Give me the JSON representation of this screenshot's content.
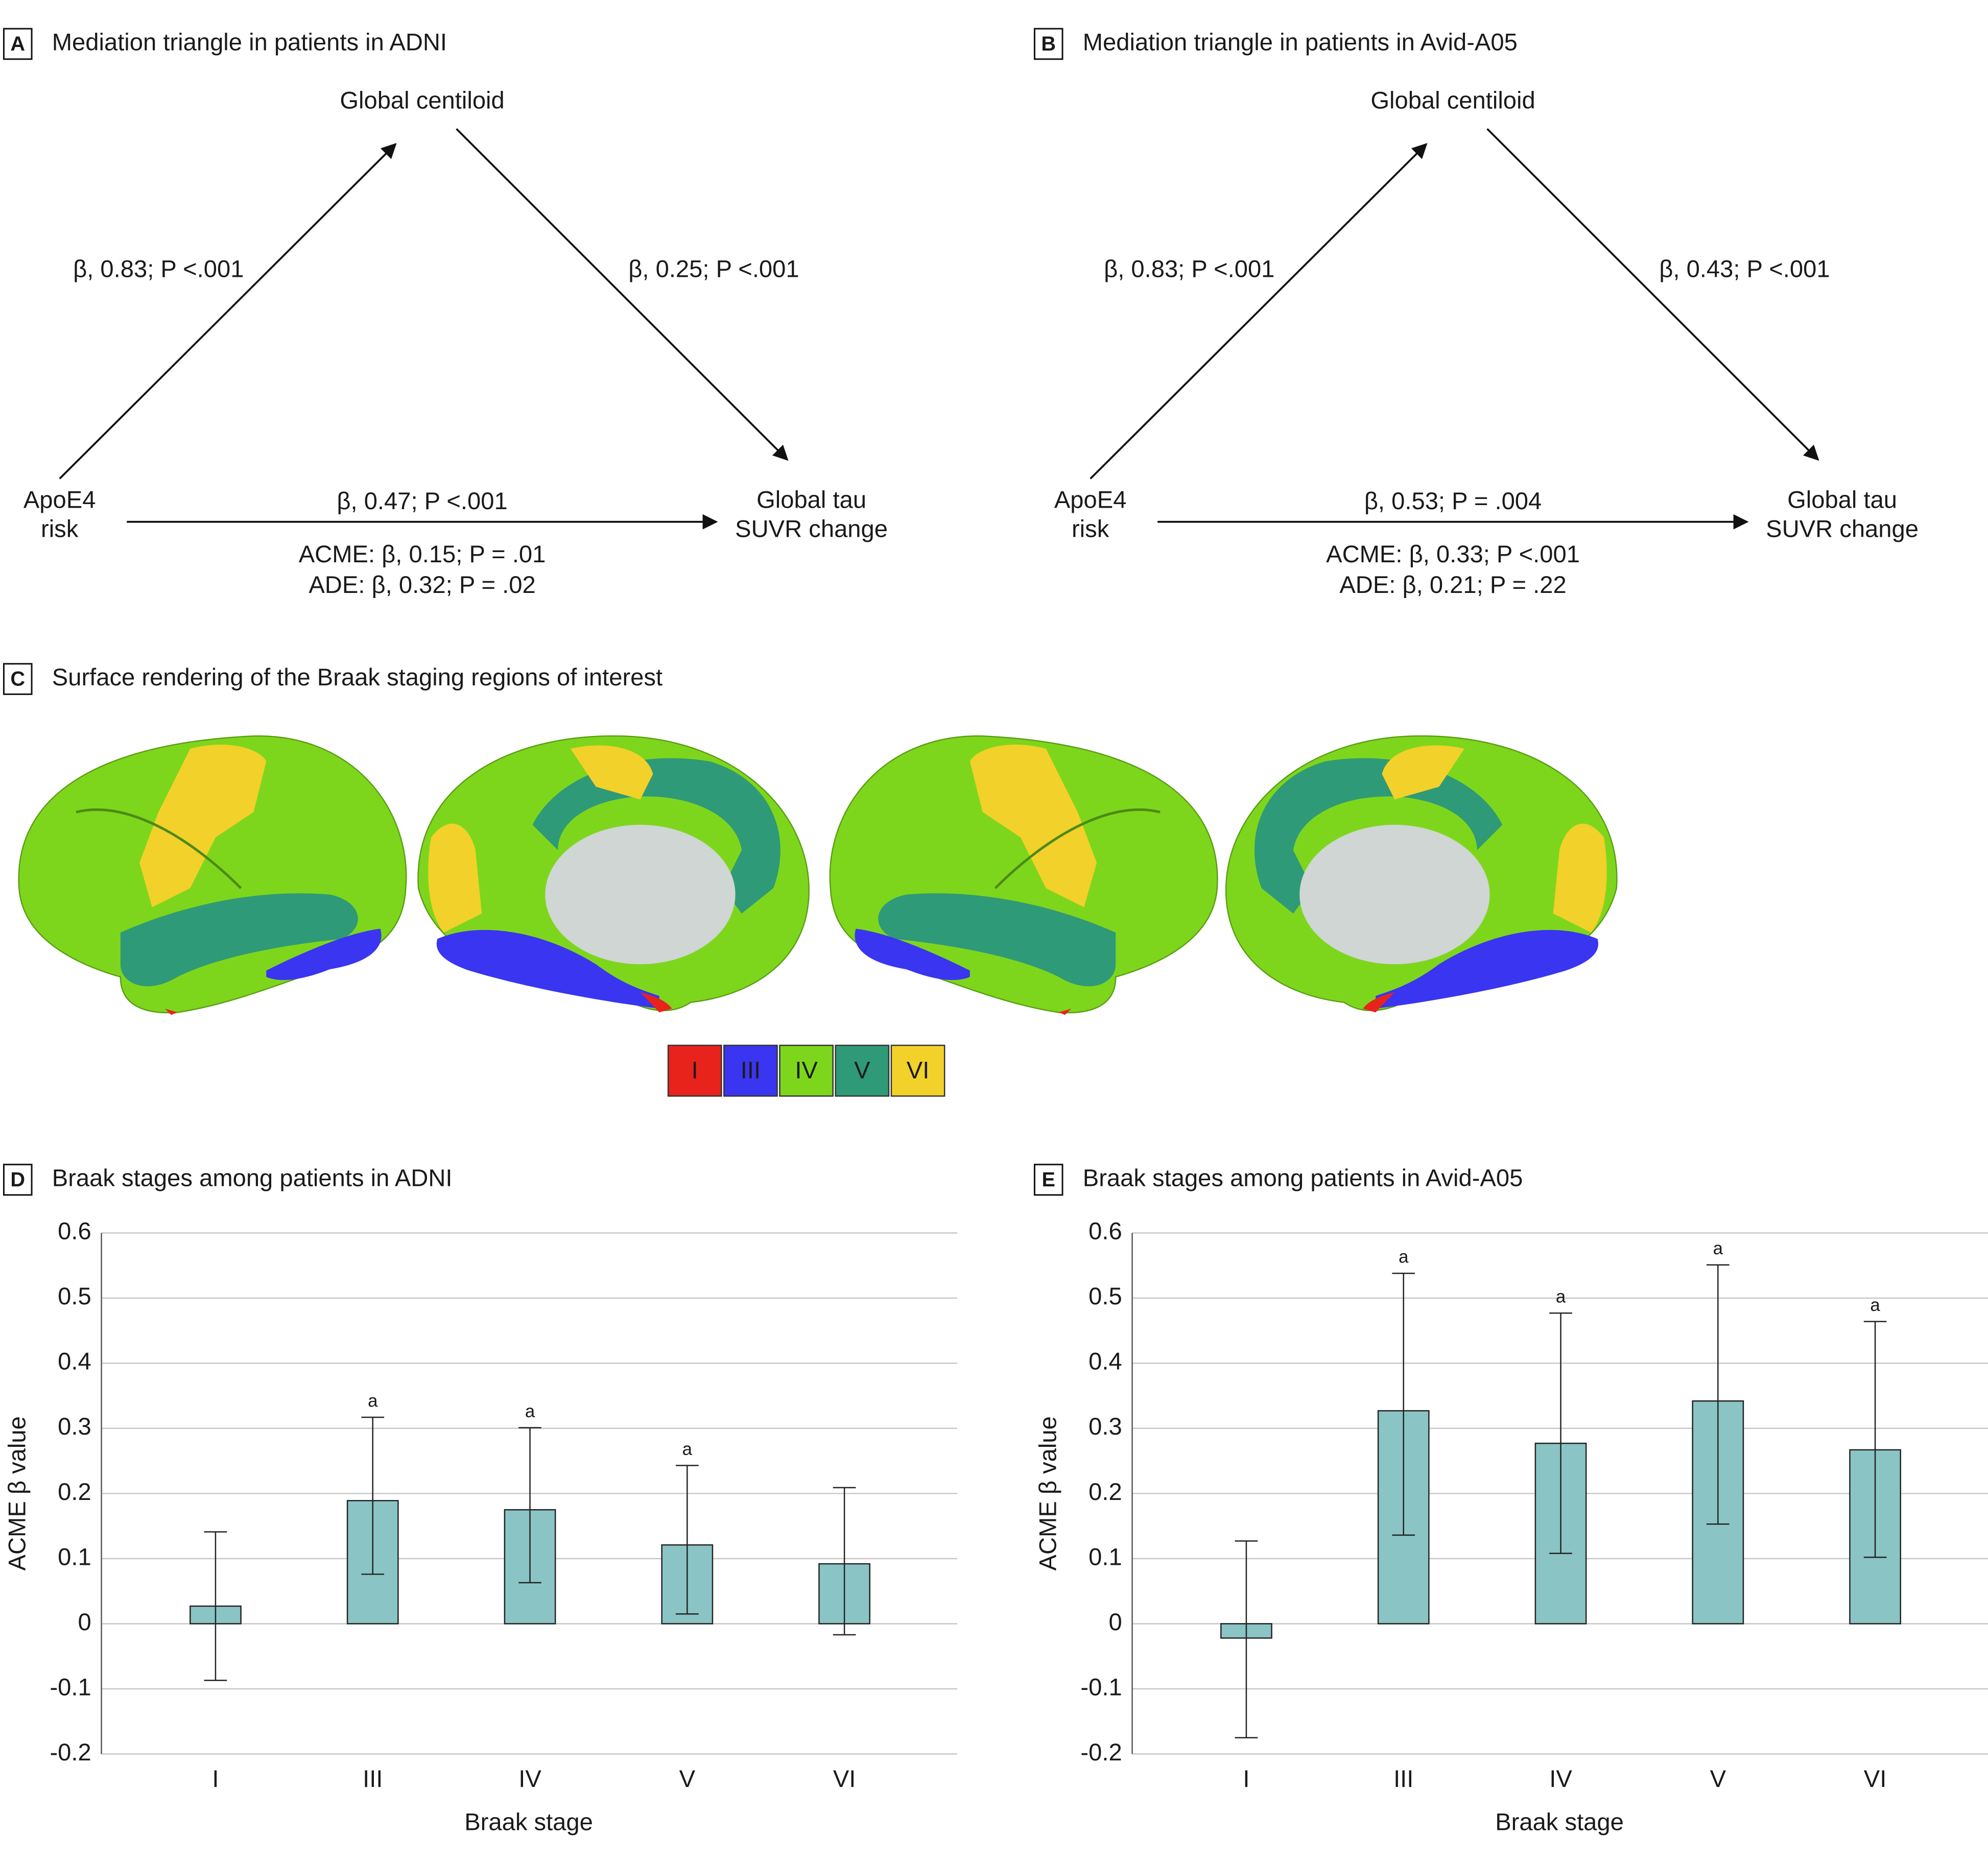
{
  "mediation": [
    {
      "letter": "A",
      "title": "Mediation triangle in patients in ADNI",
      "top_node": "Global centiloid",
      "left_node": [
        "ApoE4",
        "risk"
      ],
      "right_node": [
        "Global tau",
        "SUVR change"
      ],
      "left_path": "β, 0.83; P <.001",
      "right_path": "β, 0.25; P <.001",
      "direct_path": "β, 0.47; P <.001",
      "acme": "ACME: β, 0.15; P = .01",
      "ade": "ADE: β, 0.32; P = .02"
    },
    {
      "letter": "B",
      "title": "Mediation triangle in patients in Avid-A05",
      "top_node": "Global centiloid",
      "left_node": [
        "ApoE4",
        "risk"
      ],
      "right_node": [
        "Global tau",
        "SUVR change"
      ],
      "left_path": "β, 0.83; P <.001",
      "right_path": "β, 0.43; P <.001",
      "direct_path": "β, 0.53; P = .004",
      "acme": "ACME: β, 0.33; P <.001",
      "ade": "ADE: β, 0.21; P = .22"
    }
  ],
  "braak_rendering": {
    "letter": "C",
    "title": "Surface rendering of the Braak staging regions of interest",
    "legend": [
      {
        "label": "I",
        "color": "#e8231c"
      },
      {
        "label": "III",
        "color": "#3a35f0"
      },
      {
        "label": "IV",
        "color": "#7ed61c"
      },
      {
        "label": "V",
        "color": "#2f9a77"
      },
      {
        "label": "VI",
        "color": "#f2d12a"
      }
    ]
  },
  "chart_data": [
    {
      "type": "bar",
      "letter": "D",
      "title": "Braak stages among patients in ADNI",
      "categories": [
        "I",
        "III",
        "IV",
        "V",
        "VI"
      ],
      "values": [
        0.027,
        0.189,
        0.175,
        0.121,
        0.092
      ],
      "ci_lower": [
        -0.087,
        0.076,
        0.063,
        0.015,
        -0.017
      ],
      "ci_upper": [
        0.141,
        0.317,
        0.301,
        0.243,
        0.209
      ],
      "annotations": [
        null,
        "a",
        "a",
        "a",
        null
      ],
      "color": "#8ac4c4",
      "ylim": [
        -0.2,
        0.6
      ],
      "yticks": [
        -0.2,
        -0.1,
        0,
        0.1,
        0.2,
        0.3,
        0.4,
        0.5,
        0.6
      ],
      "ylabel": "ACME β value",
      "xlabel": "Braak stage",
      "grid": true
    },
    {
      "type": "bar",
      "letter": "E",
      "title": "Braak stages among patients in Avid-A05",
      "categories": [
        "I",
        "III",
        "IV",
        "V",
        "VI"
      ],
      "values": [
        -0.022,
        0.327,
        0.277,
        0.342,
        0.267
      ],
      "ci_lower": [
        -0.175,
        0.136,
        0.108,
        0.153,
        0.102
      ],
      "ci_upper": [
        0.127,
        0.538,
        0.477,
        0.551,
        0.464
      ],
      "annotations": [
        null,
        "a",
        "a",
        "a",
        "a"
      ],
      "color": "#8ac4c4",
      "ylim": [
        -0.2,
        0.6
      ],
      "yticks": [
        -0.2,
        -0.1,
        0,
        0.1,
        0.2,
        0.3,
        0.4,
        0.5,
        0.6
      ],
      "ylabel": "ACME β value",
      "xlabel": "Braak stage",
      "grid": true
    }
  ]
}
